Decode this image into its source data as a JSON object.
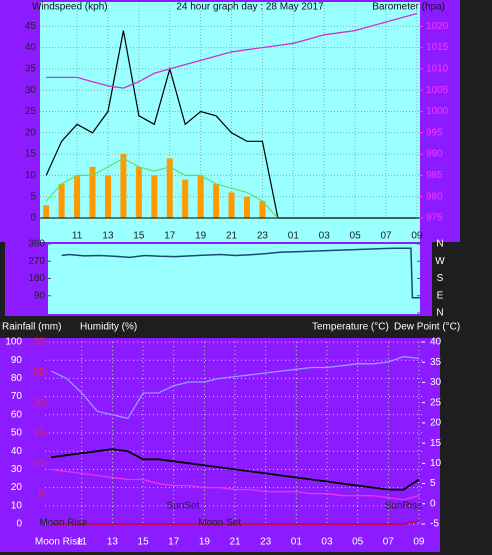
{
  "chart_data": [
    {
      "type": "line",
      "title": "24 hour graph day : 28 May 2017",
      "ylabel": "Windspeed (kph)",
      "y2label": "Barometer (hpa)",
      "x": [
        9,
        10,
        11,
        12,
        13,
        14,
        15,
        16,
        17,
        18,
        19,
        20,
        21,
        22,
        23,
        24,
        25,
        26,
        27,
        28,
        29,
        30,
        31,
        32,
        33
      ],
      "xlim": [
        8.6,
        33.2
      ],
      "xticks": [
        11,
        13,
        15,
        17,
        19,
        21,
        23,
        {
          "value": 25,
          "label": "01"
        },
        {
          "value": 27,
          "label": "03"
        },
        {
          "value": 29,
          "label": "05"
        },
        {
          "value": 31,
          "label": "07"
        },
        {
          "value": 33,
          "label": "09"
        }
      ],
      "ylim": [
        0,
        50
      ],
      "yticks": [
        0,
        5,
        10,
        15,
        20,
        25,
        30,
        35,
        40,
        45
      ],
      "y2lim": [
        975,
        1025
      ],
      "y2ticks": [
        975,
        980,
        985,
        990,
        995,
        1000,
        1005,
        1010,
        1015,
        1020
      ],
      "grid": true,
      "series": [
        {
          "color": "#ff9900",
          "style": "bar",
          "values": [
            3,
            8,
            10,
            12,
            10,
            15,
            12,
            10,
            14,
            9,
            10,
            8,
            6,
            5,
            4,
            0,
            0,
            0,
            0,
            0,
            0,
            0,
            0,
            0,
            0
          ]
        },
        {
          "color": "#000000",
          "style": "line",
          "values": [
            10,
            18,
            22,
            20,
            25,
            44,
            24,
            22,
            35,
            22,
            25,
            24,
            20,
            18,
            18,
            0,
            0,
            0,
            0,
            0,
            0,
            0,
            0,
            0,
            0
          ]
        },
        {
          "color": "#66dd66",
          "style": "line",
          "values": [
            4,
            8,
            10,
            10,
            12,
            14,
            12,
            11,
            12,
            10,
            10,
            8,
            7,
            6,
            4,
            0,
            0,
            0,
            0,
            0,
            0,
            0,
            0,
            0,
            0
          ]
        },
        {
          "color": "#cc33cc",
          "style": "line",
          "axis": "y2",
          "values": [
            1008,
            1008,
            1008,
            1007,
            1006,
            1005.5,
            1007,
            1009,
            1010,
            1011,
            1012,
            1013,
            1014,
            1014.5,
            1015,
            1015.5,
            1016,
            1017,
            1018,
            1018.5,
            1019,
            1020,
            1021,
            1022,
            1023
          ]
        }
      ]
    },
    {
      "type": "line",
      "x": [
        9.5,
        10,
        11,
        12,
        13,
        14,
        15,
        16,
        17,
        18,
        19,
        20,
        21,
        22,
        23,
        24,
        25,
        31.5,
        32.6,
        32.7,
        33.2
      ],
      "xlim": [
        8.6,
        33.2
      ],
      "ylim": [
        0,
        360
      ],
      "yticks": [
        90,
        180,
        270,
        360
      ],
      "y2lim": [
        0,
        360
      ],
      "y2ticks": [
        {
          "value": 360,
          "label": "N"
        },
        {
          "value": 270,
          "label": "W"
        },
        {
          "value": 180,
          "label": "S"
        },
        {
          "value": 90,
          "label": "E"
        },
        {
          "value": 0,
          "label": "N"
        }
      ],
      "series": [
        {
          "color": "#1a4a6e",
          "values": [
            300,
            305,
            298,
            300,
            296,
            290,
            300,
            296,
            294,
            298,
            302,
            305,
            300,
            304,
            310,
            318,
            320,
            338,
            338,
            80,
            80
          ]
        }
      ]
    },
    {
      "type": "line",
      "labels": [
        "Rainfall (mm)",
        "Humidity (%)",
        "Temperature (°C)",
        "Dew Point (°C)"
      ],
      "annotations": [
        "SunSet",
        "SunRise",
        "Moon Rise",
        "Moon Set",
        "Moon Rise"
      ],
      "x": [
        9,
        10,
        11,
        12,
        13,
        14,
        15,
        16,
        17,
        18,
        19,
        20,
        21,
        22,
        23,
        24,
        25,
        26,
        27,
        28,
        29,
        30,
        31,
        32,
        33
      ],
      "xlim": [
        8.6,
        33.2
      ],
      "xticks": [
        11,
        13,
        15,
        17,
        19,
        21,
        23,
        {
          "value": 25,
          "label": "01"
        },
        {
          "value": 27,
          "label": "03"
        },
        {
          "value": 29,
          "label": "05"
        },
        {
          "value": 31,
          "label": "07"
        },
        {
          "value": 33,
          "label": "09"
        }
      ],
      "ylim": [
        0,
        100
      ],
      "yticks": [
        0,
        10,
        20,
        30,
        40,
        50,
        60,
        70,
        80,
        90,
        100
      ],
      "y2lim": [
        -5,
        40
      ],
      "y2ticks": [
        -5,
        0,
        5,
        10,
        15,
        20,
        25,
        30,
        35,
        40
      ],
      "y3lim": [
        0,
        30
      ],
      "y3ticks": [
        5,
        10,
        15,
        20,
        25,
        30
      ],
      "grid": true,
      "series": [
        {
          "color": "#9999ff",
          "axis": "y",
          "values": [
            84,
            80,
            72,
            62,
            60,
            58,
            72,
            72,
            76,
            78,
            78,
            80,
            81,
            82,
            83,
            84,
            85,
            86,
            86,
            87,
            88,
            88,
            89,
            92,
            91
          ]
        },
        {
          "color": "#000000",
          "axis": "y2",
          "values": [
            11.5,
            12,
            12.5,
            13,
            13.5,
            13,
            11,
            11,
            10.5,
            10,
            9.5,
            9,
            8.5,
            8,
            7.5,
            7,
            6.5,
            6,
            5.5,
            5,
            4.5,
            4,
            3.5,
            3.5,
            6
          ]
        },
        {
          "color": "#ee33ee",
          "axis": "y2",
          "values": [
            8.5,
            8,
            7.5,
            7,
            6.5,
            6,
            6,
            5,
            4.5,
            4.5,
            4,
            4,
            3.5,
            3.5,
            3,
            3,
            3,
            2.5,
            2.5,
            2,
            2,
            2,
            1.5,
            1,
            2
          ]
        },
        {
          "color": "#dd0000",
          "axis": "y3",
          "values": [
            0,
            0,
            0,
            0,
            0,
            0,
            0,
            0,
            0,
            0,
            0,
            0,
            0,
            0,
            0,
            0,
            0,
            0,
            0,
            0,
            0,
            0,
            0,
            0,
            0.5
          ]
        }
      ]
    }
  ]
}
